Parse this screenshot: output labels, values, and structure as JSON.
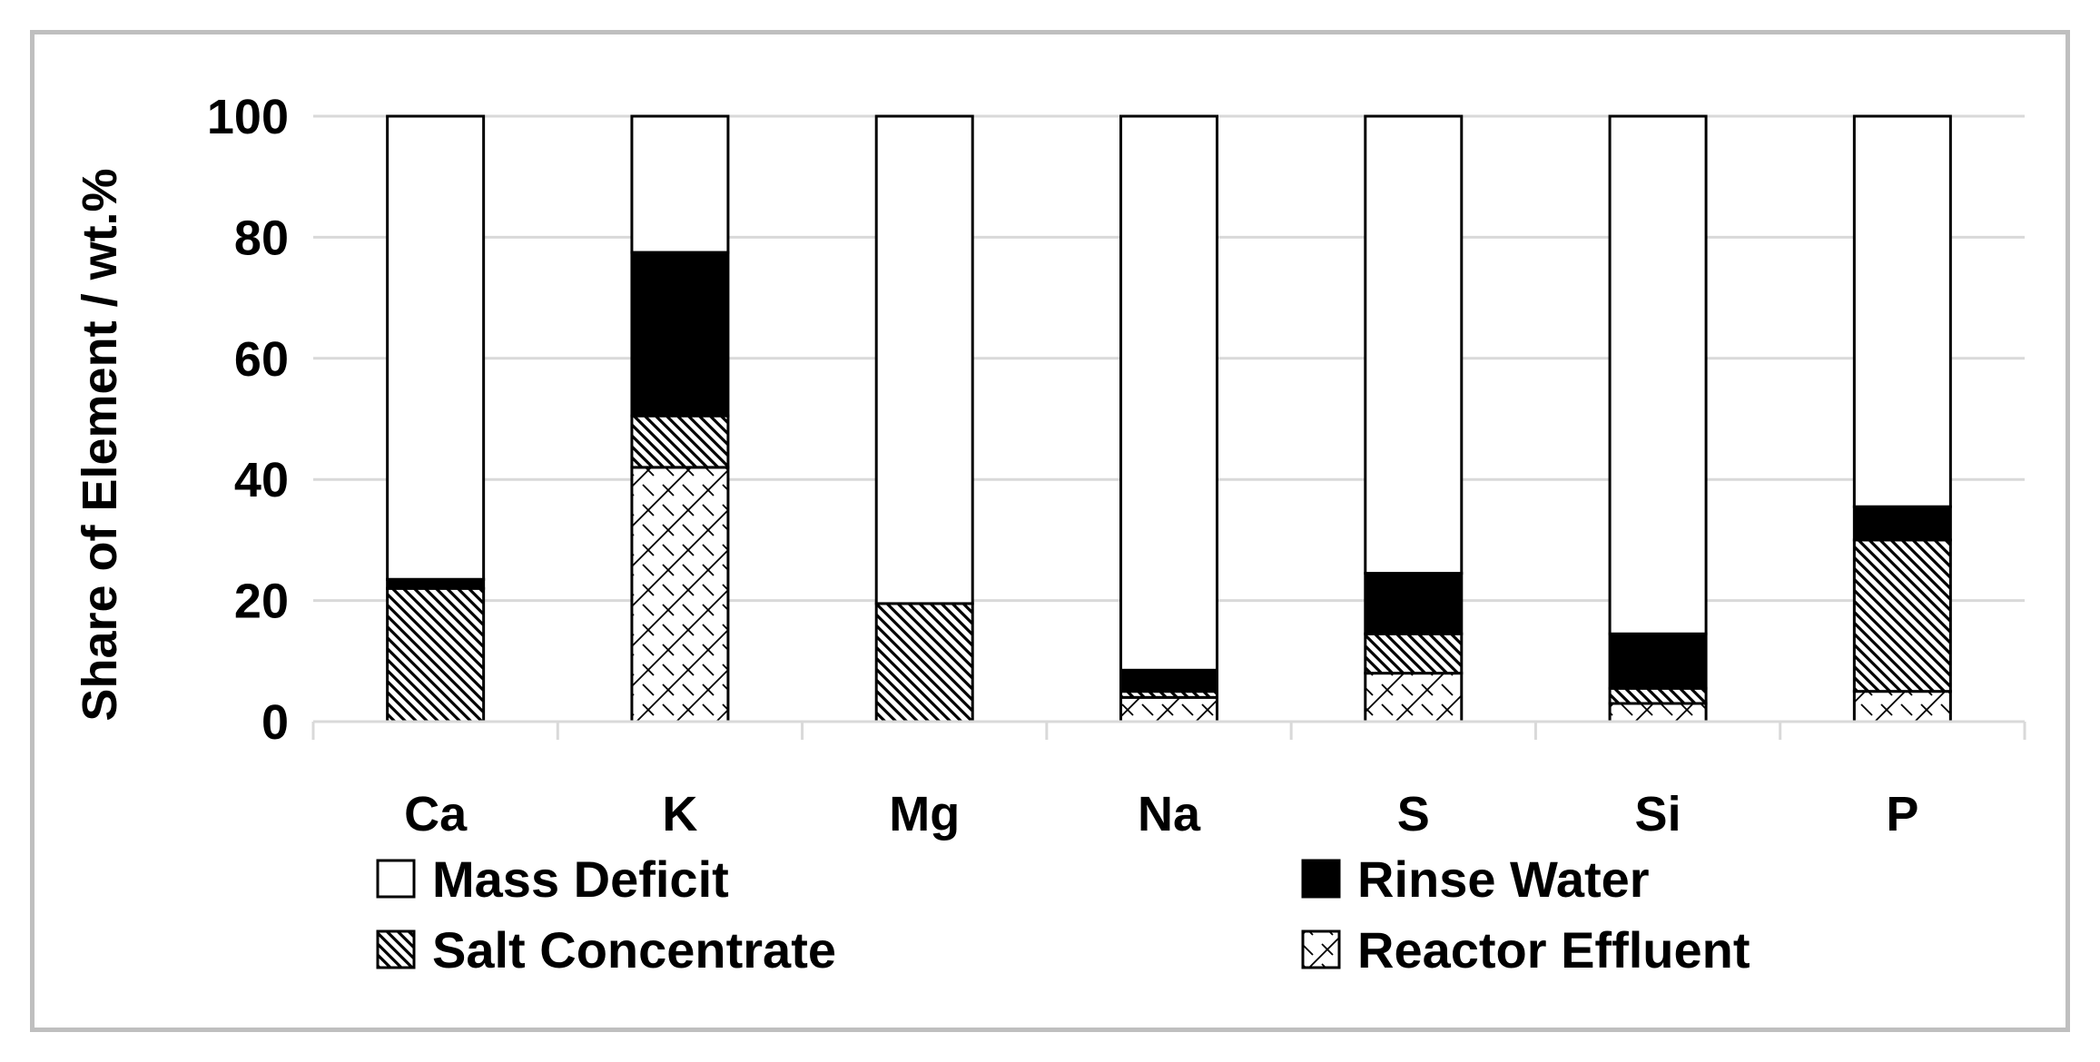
{
  "chart_data": {
    "type": "bar",
    "stacked": true,
    "title": "",
    "xlabel": "",
    "ylabel": "Share of Element / wt.%",
    "ylim": [
      0,
      100
    ],
    "yticks": [
      0,
      20,
      40,
      60,
      80,
      100
    ],
    "grid": true,
    "legend_position": "bottom",
    "categories": [
      "Ca",
      "K",
      "Mg",
      "Na",
      "S",
      "Si",
      "P"
    ],
    "series": [
      {
        "name": "Reactor Effluent",
        "pattern": "crosshatch",
        "values": [
          0,
          42,
          0,
          4,
          8,
          3,
          5
        ]
      },
      {
        "name": "Salt Concentrate",
        "pattern": "diagonal",
        "values": [
          22,
          8.5,
          19.5,
          1,
          6.5,
          2.5,
          25
        ]
      },
      {
        "name": "Rinse Water",
        "pattern": "solid",
        "values": [
          1.5,
          27,
          0,
          3.5,
          10,
          9,
          5.5
        ]
      },
      {
        "name": "Mass Deficit",
        "pattern": "none",
        "values": [
          76.5,
          22.5,
          80.5,
          91.5,
          75.5,
          85.5,
          64.5
        ]
      }
    ],
    "legend_order": [
      "Mass Deficit",
      "Rinse Water",
      "Salt Concentrate",
      "Reactor Effluent"
    ],
    "colors": {
      "fill": "#ffffff",
      "ink": "#000000",
      "grid": "#d9d9d9",
      "frame": "#bfbfbf"
    }
  }
}
